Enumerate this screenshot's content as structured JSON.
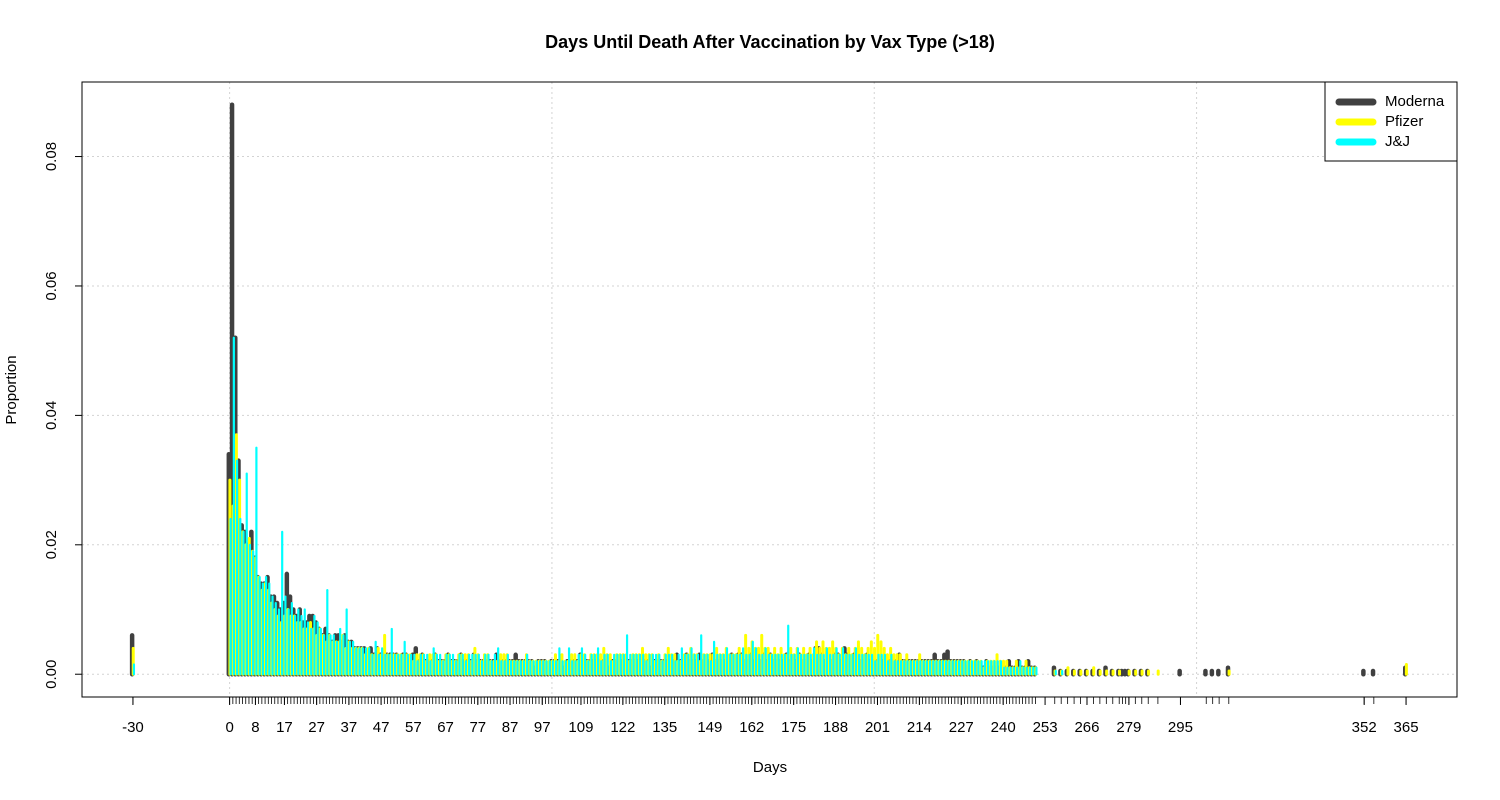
{
  "chart_data": {
    "type": "bar",
    "title": "Days Until Death After Vaccination by Vax Type (>18)",
    "xlabel": "Days",
    "ylabel": "Proportion",
    "x": [
      -30,
      0,
      1,
      2,
      3,
      4,
      5,
      6,
      7,
      8,
      9,
      10,
      11,
      12,
      13,
      14,
      15,
      16,
      17,
      18,
      19,
      20,
      21,
      22,
      23,
      24,
      25,
      26,
      27,
      28,
      29,
      30,
      31,
      32,
      33,
      34,
      35,
      36,
      37,
      38,
      39,
      40,
      41,
      42,
      43,
      44,
      45,
      46,
      47,
      48,
      49,
      50,
      51,
      52,
      53,
      54,
      55,
      56,
      57,
      58,
      59,
      60,
      61,
      62,
      63,
      64,
      65,
      66,
      67,
      68,
      69,
      70,
      71,
      72,
      73,
      74,
      75,
      76,
      77,
      78,
      79,
      80,
      81,
      82,
      83,
      84,
      85,
      86,
      87,
      88,
      89,
      90,
      91,
      92,
      93,
      94,
      95,
      96,
      97,
      98,
      99,
      100,
      101,
      102,
      103,
      104,
      105,
      106,
      107,
      108,
      109,
      110,
      111,
      112,
      113,
      114,
      115,
      116,
      117,
      118,
      119,
      120,
      121,
      122,
      123,
      124,
      125,
      126,
      127,
      128,
      129,
      130,
      131,
      132,
      133,
      134,
      135,
      136,
      137,
      138,
      139,
      140,
      141,
      142,
      143,
      144,
      145,
      146,
      147,
      148,
      149,
      150,
      151,
      152,
      153,
      154,
      155,
      156,
      157,
      158,
      159,
      160,
      161,
      162,
      163,
      164,
      165,
      166,
      167,
      168,
      169,
      170,
      171,
      172,
      173,
      174,
      175,
      176,
      177,
      178,
      179,
      180,
      181,
      182,
      183,
      184,
      185,
      186,
      187,
      188,
      189,
      190,
      191,
      192,
      193,
      194,
      195,
      196,
      197,
      198,
      199,
      200,
      201,
      202,
      203,
      204,
      205,
      206,
      207,
      208,
      209,
      210,
      211,
      212,
      213,
      214,
      215,
      216,
      217,
      218,
      219,
      220,
      221,
      222,
      223,
      224,
      225,
      226,
      227,
      228,
      229,
      230,
      231,
      232,
      233,
      234,
      235,
      236,
      237,
      238,
      239,
      240,
      241,
      242,
      243,
      244,
      245,
      246,
      247,
      248,
      249,
      250,
      256,
      258,
      260,
      262,
      264,
      266,
      268,
      270,
      272,
      274,
      276,
      277,
      278,
      279,
      281,
      283,
      285,
      288,
      295,
      303,
      305,
      307,
      310,
      352,
      355,
      365
    ],
    "series": [
      {
        "name": "Moderna",
        "color": "#404040",
        "values": [
          0.006,
          0.034,
          0.088,
          0.052,
          0.033,
          0.023,
          0.022,
          0.02,
          0.022,
          0.018,
          0.015,
          0.014,
          0.014,
          0.015,
          0.012,
          0.012,
          0.011,
          0.01,
          0.011,
          0.0155,
          0.012,
          0.01,
          0.009,
          0.01,
          0.008,
          0.008,
          0.009,
          0.009,
          0.008,
          0.007,
          0.006,
          0.007,
          0.006,
          0.005,
          0.006,
          0.006,
          0.005,
          0.006,
          0.005,
          0.005,
          0.004,
          0.004,
          0.004,
          0.004,
          0.003,
          0.004,
          0.003,
          0.004,
          0.003,
          0.003,
          0.003,
          0.003,
          0.003,
          0.003,
          0.002,
          0.003,
          0.003,
          0.002,
          0.003,
          0.004,
          0.002,
          0.003,
          0.002,
          0.002,
          0.002,
          0.003,
          0.002,
          0.002,
          0.002,
          0.003,
          0.002,
          0.002,
          0.002,
          0.003,
          0.002,
          0.002,
          0.002,
          0.003,
          0.002,
          0.002,
          0.002,
          0.002,
          0.002,
          0.002,
          0.003,
          0.002,
          0.002,
          0.002,
          0.002,
          0.002,
          0.003,
          0.002,
          0.002,
          0.002,
          0.002,
          0.002,
          0.001,
          0.002,
          0.002,
          0.002,
          0.001,
          0.002,
          0.002,
          0.002,
          0.002,
          0.001,
          0.002,
          0.002,
          0.002,
          0.002,
          0.003,
          0.002,
          0.002,
          0.002,
          0.002,
          0.002,
          0.002,
          0.002,
          0.002,
          0.001,
          0.002,
          0.002,
          0.002,
          0.002,
          0.002,
          0.002,
          0.002,
          0.002,
          0.002,
          0.002,
          0.002,
          0.002,
          0.001,
          0.002,
          0.002,
          0.002,
          0.002,
          0.002,
          0.002,
          0.002,
          0.003,
          0.002,
          0.002,
          0.003,
          0.002,
          0.002,
          0.002,
          0.003,
          0.002,
          0.002,
          0.002,
          0.003,
          0.002,
          0.002,
          0.002,
          0.002,
          0.002,
          0.003,
          0.002,
          0.003,
          0.003,
          0.002,
          0.002,
          0.003,
          0.002,
          0.002,
          0.002,
          0.003,
          0.002,
          0.003,
          0.002,
          0.002,
          0.002,
          0.002,
          0.003,
          0.002,
          0.002,
          0.002,
          0.003,
          0.002,
          0.002,
          0.003,
          0.002,
          0.004,
          0.004,
          0.003,
          0.002,
          0.002,
          0.002,
          0.003,
          0.003,
          0.002,
          0.004,
          0.003,
          0.002,
          0.003,
          0.002,
          0.002,
          0.002,
          0.003,
          0.002,
          0.002,
          0.002,
          0.002,
          0.002,
          0.002,
          0.002,
          0.002,
          0.002,
          0.003,
          0.002,
          0.002,
          0.002,
          0.002,
          0.002,
          0.002,
          0.002,
          0.002,
          0.002,
          0.002,
          0.003,
          0.002,
          0.002,
          0.003,
          0.0035,
          0.002,
          0.002,
          0.002,
          0.002,
          0.002,
          0.001,
          0.002,
          0.001,
          0.002,
          0.001,
          0.001,
          0.002,
          0.001,
          0.001,
          0.001,
          0.001,
          0.001,
          0.001,
          0.002,
          0.001,
          0.001,
          0.002,
          0.001,
          0.001,
          0.002,
          0.001,
          0.001,
          0.001,
          0.0005,
          0.0005,
          0.0005,
          0.0005,
          0.0005,
          0.0005,
          0.0005,
          0.001,
          0.0005,
          0.0005,
          0.0005,
          0.0005,
          0.0005,
          0.0005,
          0.0005,
          0.0005,
          null,
          0.0005,
          0.0005,
          0.0005,
          0.0005,
          0.001,
          0.0005,
          0.0005,
          0.001
        ]
      },
      {
        "name": "Pfizer",
        "color": "#ffff00",
        "values": [
          0.004,
          0.03,
          0.026,
          0.037,
          0.03,
          0.022,
          0.02,
          0.021,
          0.019,
          0.018,
          0.015,
          0.013,
          0.014,
          0.013,
          0.011,
          0.01,
          0.009,
          0.008,
          0.009,
          0.01,
          0.009,
          0.009,
          0.008,
          0.008,
          0.007,
          0.007,
          0.008,
          0.007,
          0.006,
          0.007,
          0.006,
          0.005,
          0.006,
          0.005,
          0.005,
          0.005,
          0.006,
          0.004,
          0.005,
          0.004,
          0.004,
          0.004,
          0.004,
          0.003,
          0.004,
          0.003,
          0.003,
          0.004,
          0.003,
          0.006,
          0.003,
          0.003,
          0.003,
          0.003,
          0.003,
          0.003,
          0.003,
          0.003,
          0.002,
          0.003,
          0.003,
          0.003,
          0.002,
          0.003,
          0.003,
          0.003,
          0.002,
          0.002,
          0.003,
          0.003,
          0.002,
          0.002,
          0.003,
          0.003,
          0.003,
          0.003,
          0.002,
          0.004,
          0.003,
          0.002,
          0.003,
          0.003,
          0.002,
          0.002,
          0.002,
          0.003,
          0.003,
          0.003,
          0.002,
          0.002,
          0.002,
          0.002,
          0.002,
          0.003,
          0.002,
          0.002,
          0.002,
          0.002,
          0.002,
          0.002,
          0.002,
          0.002,
          0.003,
          0.002,
          0.003,
          0.002,
          0.002,
          0.003,
          0.003,
          0.002,
          0.003,
          0.003,
          0.002,
          0.003,
          0.003,
          0.003,
          0.003,
          0.004,
          0.003,
          0.003,
          0.002,
          0.003,
          0.003,
          0.003,
          0.003,
          0.002,
          0.003,
          0.003,
          0.003,
          0.004,
          0.003,
          0.003,
          0.003,
          0.002,
          0.003,
          0.002,
          0.003,
          0.004,
          0.003,
          0.003,
          0.002,
          0.002,
          0.003,
          0.003,
          0.004,
          0.003,
          0.003,
          0.002,
          0.003,
          0.003,
          0.003,
          0.003,
          0.004,
          0.003,
          0.003,
          0.004,
          0.003,
          0.003,
          0.003,
          0.004,
          0.003,
          0.006,
          0.004,
          0.005,
          0.004,
          0.004,
          0.006,
          0.004,
          0.004,
          0.003,
          0.004,
          0.003,
          0.004,
          0.003,
          0.003,
          0.004,
          0.003,
          0.004,
          0.003,
          0.004,
          0.003,
          0.004,
          0.003,
          0.005,
          0.004,
          0.005,
          0.004,
          0.004,
          0.005,
          0.004,
          0.003,
          0.004,
          0.003,
          0.004,
          0.003,
          0.004,
          0.005,
          0.004,
          0.003,
          0.004,
          0.005,
          0.004,
          0.006,
          0.005,
          0.004,
          0.003,
          0.004,
          0.003,
          0.003,
          0.003,
          0.002,
          0.003,
          0.002,
          0.002,
          0.002,
          0.003,
          0.002,
          0.002,
          0.002,
          0.002,
          0.002,
          0.002,
          0.002,
          0.002,
          0.002,
          0.002,
          0.002,
          0.002,
          0.002,
          0.002,
          0.002,
          0.002,
          0.002,
          0.002,
          0.002,
          0.001,
          0.002,
          0.002,
          0.002,
          0.003,
          0.002,
          0.002,
          0.002,
          0.001,
          0.001,
          0.002,
          0.001,
          0.001,
          0.002,
          0.001,
          0.001,
          0.001,
          0.0005,
          0.0005,
          0.001,
          0.0005,
          0.0005,
          0.0005,
          0.001,
          0.0005,
          0.0005,
          0.0005,
          0.0005,
          null,
          null,
          0.0005,
          0.0005,
          0.0005,
          0.0005,
          0.0005,
          null,
          null,
          null,
          null,
          0.0005,
          null,
          null,
          0.0015
        ]
      },
      {
        "name": "J&J",
        "color": "#00ffff",
        "values": [
          0.0015,
          0.024,
          0.052,
          0.033,
          0.024,
          0.022,
          0.031,
          0.02,
          0.019,
          0.035,
          0.015,
          0.014,
          0.015,
          0.014,
          0.012,
          0.011,
          0.01,
          0.022,
          0.012,
          0.01,
          0.011,
          0.009,
          0.01,
          0.009,
          0.01,
          0.008,
          0.007,
          0.009,
          0.008,
          0.007,
          0.006,
          0.013,
          0.006,
          0.006,
          0.005,
          0.007,
          0.006,
          0.01,
          0.005,
          0.005,
          0.004,
          0.004,
          0.004,
          0.004,
          0.004,
          0.003,
          0.005,
          0.003,
          0.004,
          0.003,
          0.003,
          0.007,
          0.003,
          0.003,
          0.003,
          0.005,
          0.003,
          0.003,
          0.003,
          0.002,
          0.003,
          0.003,
          0.003,
          0.002,
          0.004,
          0.003,
          0.003,
          0.002,
          0.003,
          0.003,
          0.003,
          0.002,
          0.003,
          0.003,
          0.002,
          0.003,
          0.003,
          0.003,
          0.003,
          0.002,
          0.003,
          0.003,
          0.002,
          0.003,
          0.004,
          0.002,
          0.002,
          0.003,
          0.002,
          0.002,
          0.002,
          0.002,
          0.002,
          0.003,
          0.002,
          0.002,
          0.002,
          0.002,
          0.002,
          0.002,
          0.002,
          0.002,
          0.002,
          0.004,
          0.002,
          0.002,
          0.004,
          0.002,
          0.002,
          0.003,
          0.004,
          0.003,
          0.002,
          0.003,
          0.003,
          0.004,
          0.002,
          0.003,
          0.003,
          0.002,
          0.003,
          0.003,
          0.003,
          0.003,
          0.006,
          0.003,
          0.003,
          0.003,
          0.003,
          0.003,
          0.002,
          0.003,
          0.003,
          0.003,
          0.003,
          0.002,
          0.003,
          0.003,
          0.003,
          0.002,
          0.003,
          0.004,
          0.003,
          0.003,
          0.004,
          0.003,
          0.003,
          0.006,
          0.003,
          0.003,
          0.002,
          0.005,
          0.003,
          0.003,
          0.003,
          0.004,
          0.003,
          0.003,
          0.003,
          0.003,
          0.004,
          0.003,
          0.003,
          0.005,
          0.004,
          0.003,
          0.003,
          0.004,
          0.003,
          0.003,
          0.003,
          0.003,
          0.003,
          0.003,
          0.0075,
          0.003,
          0.003,
          0.004,
          0.003,
          0.003,
          0.003,
          0.003,
          0.004,
          0.003,
          0.003,
          0.003,
          0.004,
          0.003,
          0.003,
          0.004,
          0.003,
          0.004,
          0.003,
          0.003,
          0.003,
          0.004,
          0.003,
          0.003,
          0.003,
          0.003,
          0.003,
          0.002,
          0.003,
          0.003,
          0.003,
          0.002,
          0.003,
          0.002,
          0.002,
          0.002,
          0.002,
          0.002,
          0.002,
          0.002,
          0.002,
          0.002,
          0.002,
          0.002,
          0.002,
          0.002,
          0.002,
          0.002,
          0.002,
          0.002,
          0.002,
          0.002,
          0.002,
          0.002,
          0.002,
          0.002,
          0.002,
          0.002,
          0.002,
          0.002,
          0.002,
          0.002,
          0.002,
          0.002,
          0.002,
          0.002,
          0.002,
          0.001,
          0.001,
          0.001,
          0.001,
          0.001,
          0.002,
          0.001,
          0.001,
          0.001,
          0.001,
          0.001,
          0.0005,
          0.0005,
          null,
          null,
          null,
          null,
          null,
          null,
          null,
          null,
          null,
          null,
          null,
          null,
          null,
          null,
          null,
          null,
          null,
          null,
          null,
          null,
          null,
          null,
          null,
          null
        ]
      }
    ],
    "xlim": [
      -45.8,
      380.8
    ],
    "xticks": [
      -30,
      0,
      8,
      17,
      27,
      37,
      47,
      57,
      67,
      77,
      87,
      97,
      109,
      122,
      135,
      149,
      162,
      175,
      188,
      201,
      214,
      227,
      240,
      253,
      266,
      279,
      295,
      352,
      365
    ],
    "xgrid": [
      0,
      100,
      200,
      300
    ],
    "ylim": [
      -0.00352,
      0.09152
    ],
    "yticks": [
      {
        "value": 0,
        "label": "0.00"
      },
      0.02,
      0.04,
      0.06,
      0.08
    ],
    "grid": true,
    "legend": "topright"
  }
}
